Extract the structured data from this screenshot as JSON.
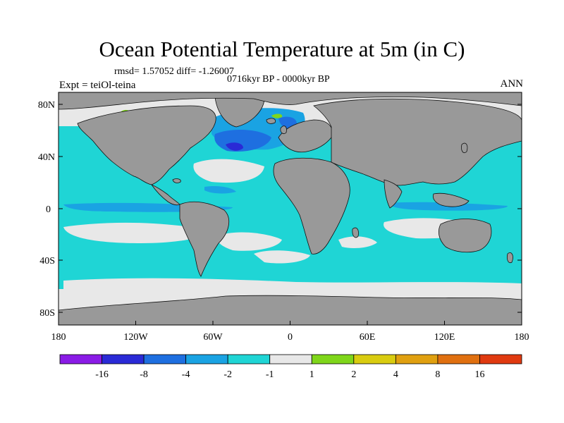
{
  "header": {
    "title": "Ocean Potential Temperature at 5m (in C)",
    "stats": "rmsd= 1.57052 diff= -1.26007",
    "period": "0716kyr BP - 0000kyr BP",
    "experiment": "Expt = teiOl-teina",
    "season": "ANN"
  },
  "axes": {
    "lat_ticks": [
      "80N",
      "40N",
      "0",
      "40S",
      "80S"
    ],
    "lon_ticks": [
      "180",
      "120W",
      "60W",
      "0",
      "60E",
      "120E",
      "180"
    ]
  },
  "colors": {
    "land": "#999999",
    "pos_land": "#999999"
  },
  "colorbar": {
    "colors": [
      "#8a1be6",
      "#2a2ad6",
      "#1e6fe0",
      "#1aa3e3",
      "#1fd5d5",
      "#e8e8e8",
      "#7fd61a",
      "#d9cc10",
      "#e0a010",
      "#e07010",
      "#e03a10"
    ],
    "labels": [
      "-16",
      "-8",
      "-4",
      "-2",
      "-1",
      "1",
      "2",
      "4",
      "8",
      "16"
    ]
  }
}
